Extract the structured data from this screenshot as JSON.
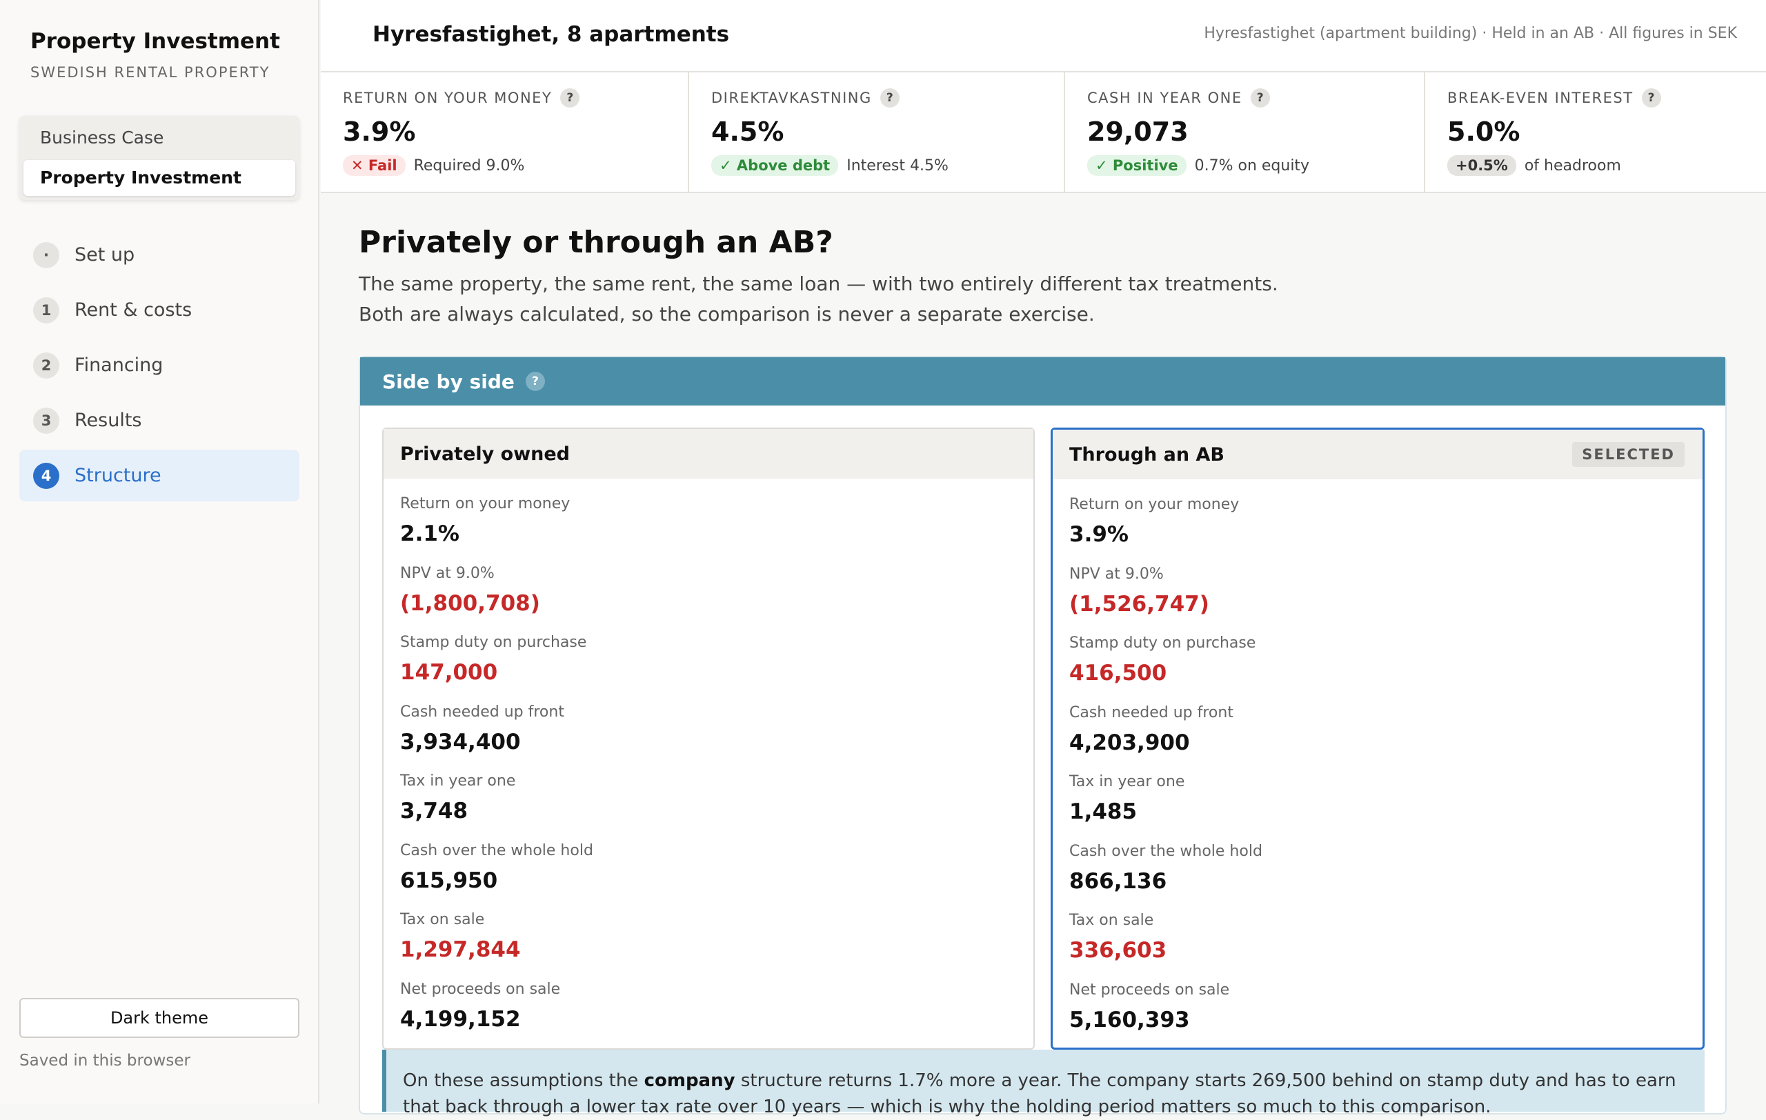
{
  "sidebar": {
    "app_title": "Property Investment",
    "app_subtitle": "SWEDISH RENTAL PROPERTY",
    "modes": [
      "Business Case",
      "Property Investment"
    ],
    "active_mode": "Property Investment",
    "steps": [
      {
        "num": "·",
        "label": "Set up"
      },
      {
        "num": "1",
        "label": "Rent & costs"
      },
      {
        "num": "2",
        "label": "Financing"
      },
      {
        "num": "3",
        "label": "Results"
      },
      {
        "num": "4",
        "label": "Structure"
      }
    ],
    "active_step": "Structure",
    "theme_button": "Dark theme",
    "saved_note": "Saved in this browser"
  },
  "header": {
    "title": "Hyresfastighet, 8 apartments",
    "meta": "Hyresfastighet (apartment building) · Held in an AB · All figures in SEK"
  },
  "kpis": [
    {
      "label": "RETURN ON YOUR MONEY",
      "value": "3.9%",
      "pill": "✕ Fail",
      "pill_style": "fail",
      "note": "Required 9.0%"
    },
    {
      "label": "DIREKTAVKASTNING",
      "value": "4.5%",
      "pill": "✓ Above debt",
      "pill_style": "ok",
      "note": "Interest 4.5%"
    },
    {
      "label": "CASH IN YEAR ONE",
      "value": "29,073",
      "pill": "✓ Positive",
      "pill_style": "ok",
      "note": "0.7% on equity"
    },
    {
      "label": "BREAK-EVEN INTEREST",
      "value": "5.0%",
      "pill": "+0.5%",
      "pill_style": "neutral",
      "note": "of headroom"
    }
  ],
  "help_glyph": "?",
  "section": {
    "title": "Privately or through an AB?",
    "desc_line1": "The same property, the same rent, the same loan — with two entirely different tax treatments.",
    "desc_line2": "Both are always calculated, so the comparison is never a separate exercise."
  },
  "panel": {
    "title": "Side by side",
    "left": {
      "title": "Privately owned",
      "metrics": [
        {
          "label": "Return on your money",
          "value": "2.1%",
          "negative": false
        },
        {
          "label": "NPV at 9.0%",
          "value": "(1,800,708)",
          "negative": true
        },
        {
          "label": "Stamp duty on purchase",
          "value": "147,000",
          "negative": true
        },
        {
          "label": "Cash needed up front",
          "value": "3,934,400",
          "negative": false
        },
        {
          "label": "Tax in year one",
          "value": "3,748",
          "negative": false
        },
        {
          "label": "Cash over the whole hold",
          "value": "615,950",
          "negative": false
        },
        {
          "label": "Tax on sale",
          "value": "1,297,844",
          "negative": true
        },
        {
          "label": "Net proceeds on sale",
          "value": "4,199,152",
          "negative": false
        }
      ]
    },
    "right": {
      "title": "Through an AB",
      "badge": "SELECTED",
      "metrics": [
        {
          "label": "Return on your money",
          "value": "3.9%",
          "negative": false
        },
        {
          "label": "NPV at 9.0%",
          "value": "(1,526,747)",
          "negative": true
        },
        {
          "label": "Stamp duty on purchase",
          "value": "416,500",
          "negative": true
        },
        {
          "label": "Cash needed up front",
          "value": "4,203,900",
          "negative": false
        },
        {
          "label": "Tax in year one",
          "value": "1,485",
          "negative": false
        },
        {
          "label": "Cash over the whole hold",
          "value": "866,136",
          "negative": false
        },
        {
          "label": "Tax on sale",
          "value": "336,603",
          "negative": true
        },
        {
          "label": "Net proceeds on sale",
          "value": "5,160,393",
          "negative": false
        }
      ]
    },
    "callout": {
      "before": "On these assumptions the ",
      "bold": "company",
      "after": " structure returns 1.7% more a year. The company starts 269,500 behind on stamp duty and has to earn that back through a lower tax rate over 10 years — which is why the holding period matters so much to this comparison."
    }
  },
  "colors": {
    "accent": "#2a6fc9",
    "panel_header": "#4a8ea8",
    "negative": "#c62828",
    "positive": "#2e8b3a"
  }
}
